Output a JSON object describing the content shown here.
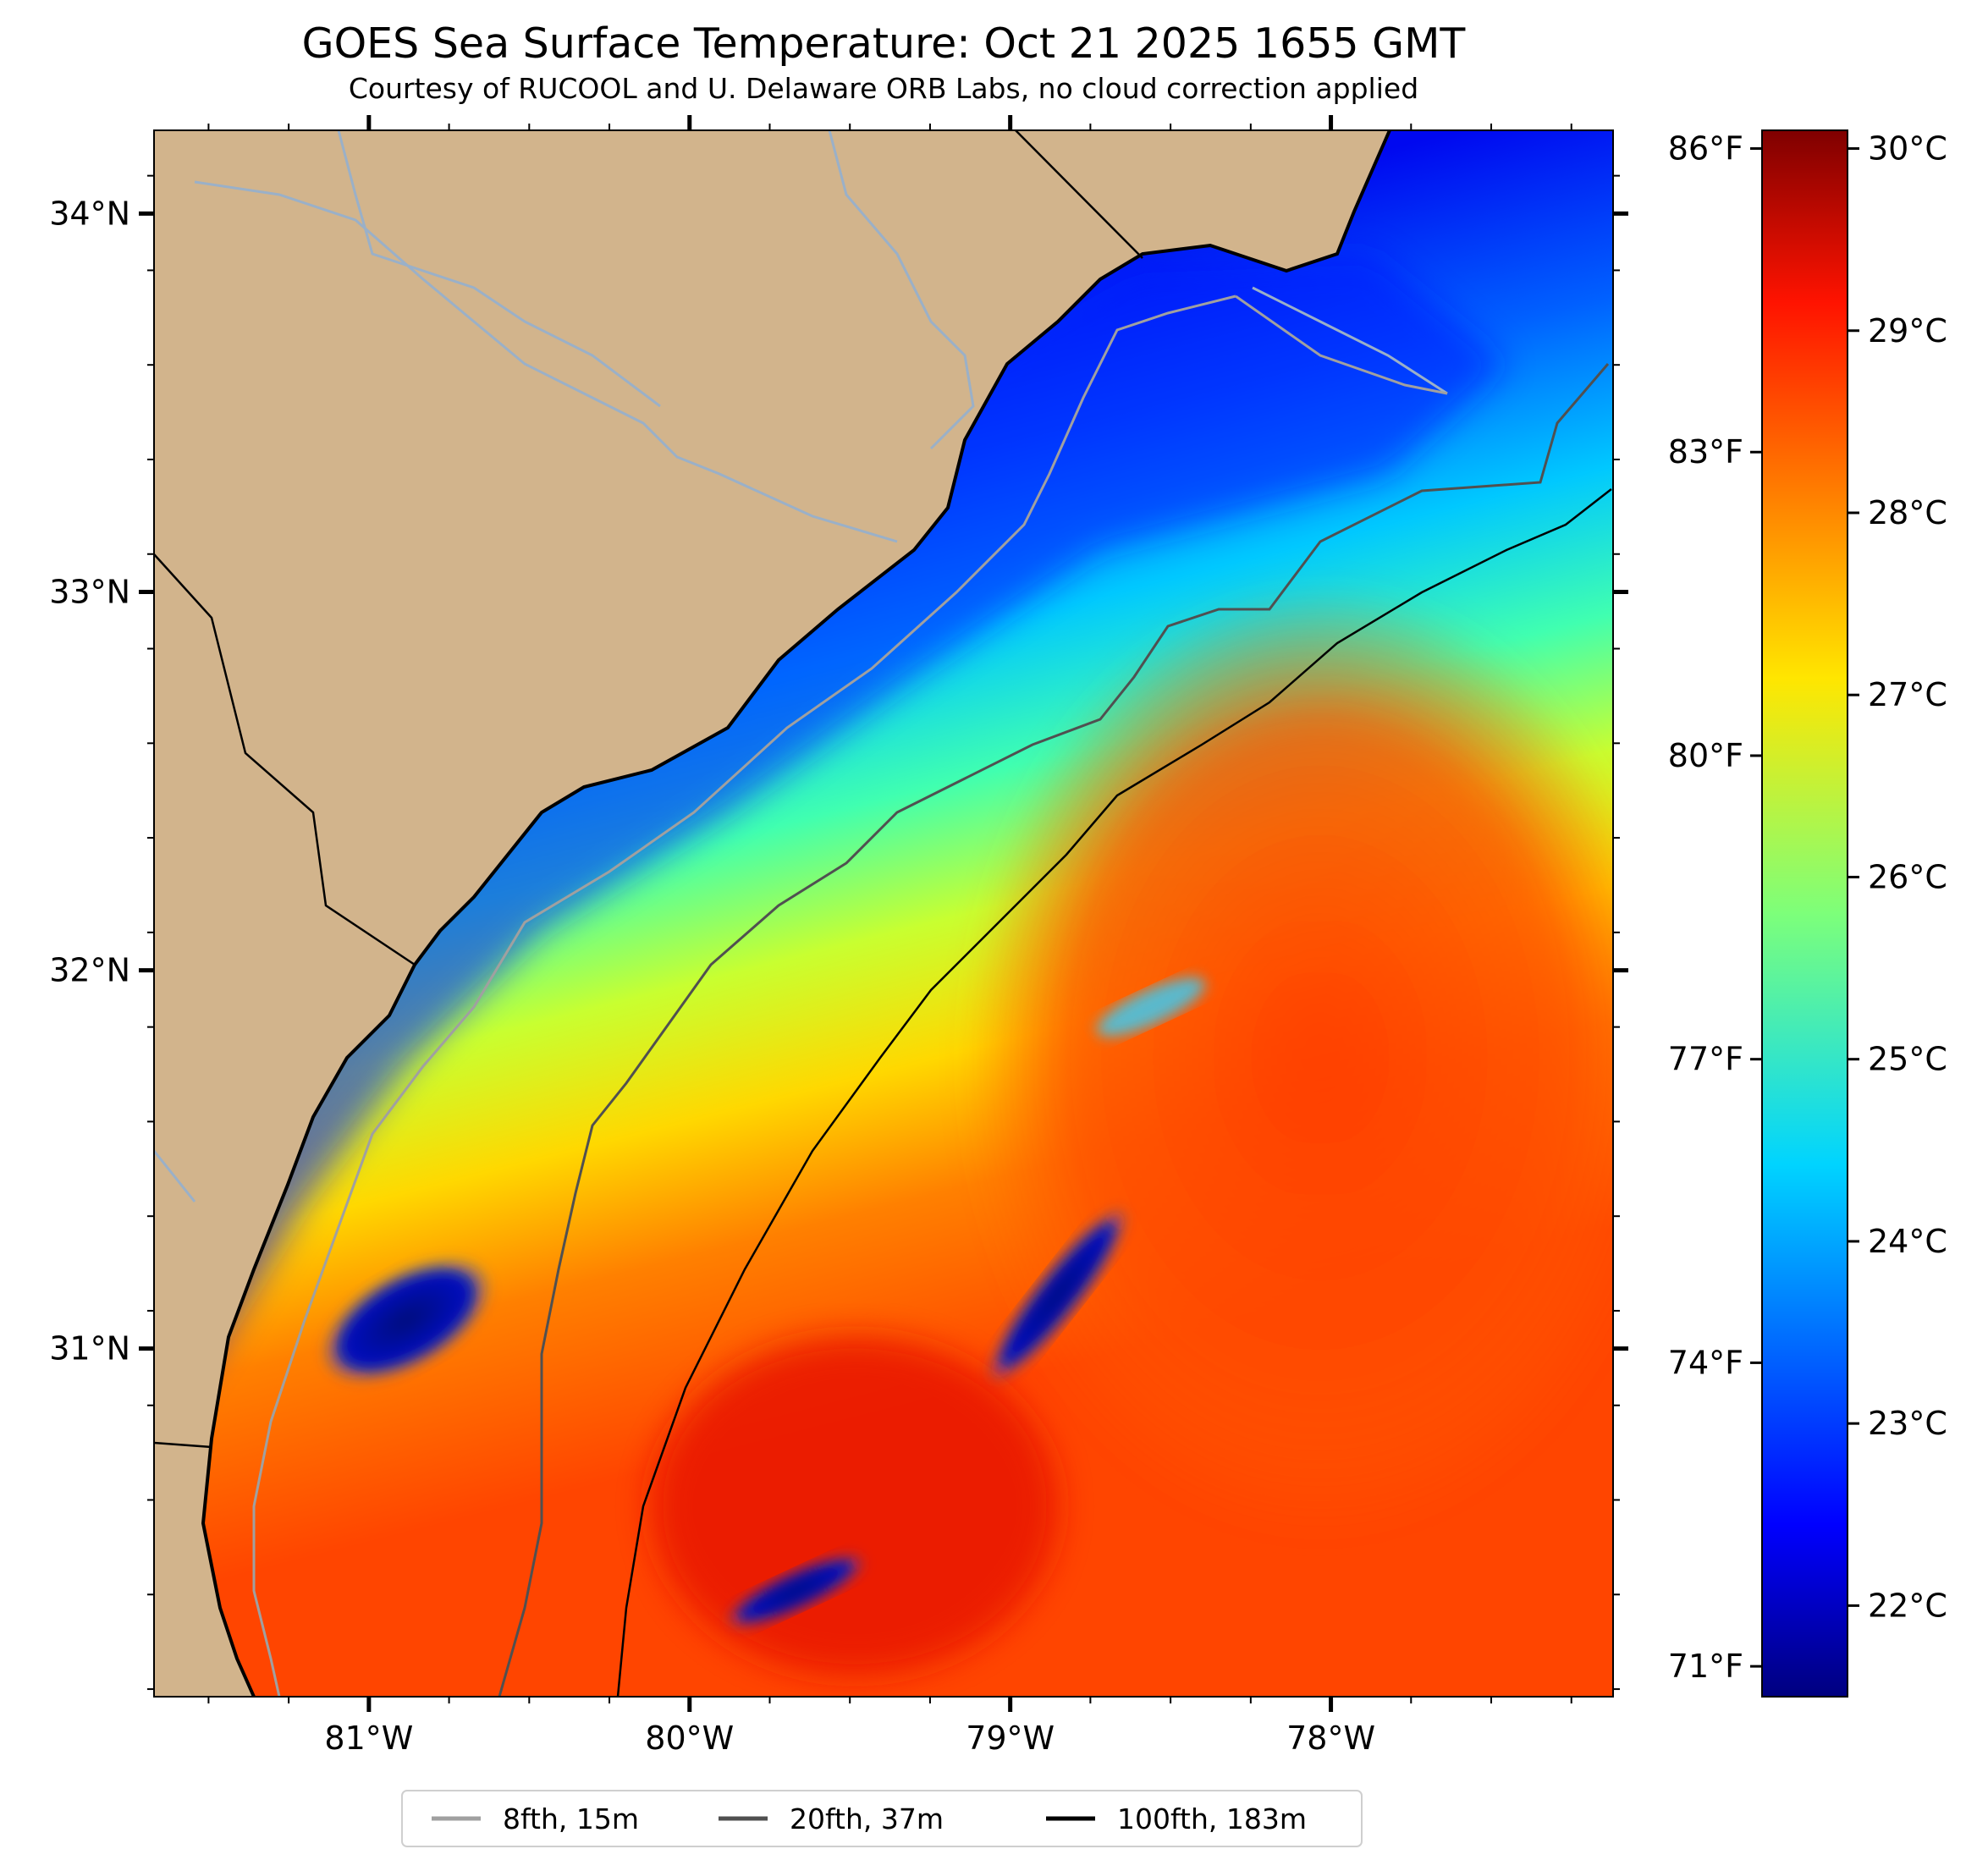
{
  "title": "GOES Sea Surface Temperature: Oct 21 2025 1655 GMT",
  "subtitle": "Courtesy of RUCOOL and U. Delaware ORB Labs, no cloud correction applied",
  "map": {
    "lon_range": [
      -81.67,
      -77.12
    ],
    "lat_range": [
      30.08,
      34.22
    ],
    "lat_ticks": [
      {
        "value": 34,
        "label": "34°N"
      },
      {
        "value": 33,
        "label": "33°N"
      },
      {
        "value": 32,
        "label": "32°N"
      },
      {
        "value": 31,
        "label": "31°N"
      }
    ],
    "lon_ticks": [
      {
        "value": -81,
        "label": "81°W"
      },
      {
        "value": -80,
        "label": "80°W"
      },
      {
        "value": -79,
        "label": "79°W"
      },
      {
        "value": -78,
        "label": "78°W"
      }
    ],
    "land_color": "#d2b48c",
    "colormap": "jet"
  },
  "colorbar": {
    "range_c": [
      21.5,
      30.1
    ],
    "celsius_ticks": [
      {
        "value": 30,
        "label": "30°C"
      },
      {
        "value": 29,
        "label": "29°C"
      },
      {
        "value": 28,
        "label": "28°C"
      },
      {
        "value": 27,
        "label": "27°C"
      },
      {
        "value": 26,
        "label": "26°C"
      },
      {
        "value": 25,
        "label": "25°C"
      },
      {
        "value": 24,
        "label": "24°C"
      },
      {
        "value": 23,
        "label": "23°C"
      },
      {
        "value": 22,
        "label": "22°C"
      }
    ],
    "fahrenheit_ticks": [
      {
        "value": 86,
        "label": "86°F"
      },
      {
        "value": 83,
        "label": "83°F"
      },
      {
        "value": 80,
        "label": "80°F"
      },
      {
        "value": 77,
        "label": "77°F"
      },
      {
        "value": 74,
        "label": "74°F"
      },
      {
        "value": 71,
        "label": "71°F"
      }
    ]
  },
  "legend": {
    "placement": "bottom-center",
    "items": [
      {
        "label": "8fth, 15m",
        "color": "#a0a0a0"
      },
      {
        "label": "20fth, 37m",
        "color": "#505050"
      },
      {
        "label": "100fth, 183m",
        "color": "#000000"
      }
    ]
  }
}
